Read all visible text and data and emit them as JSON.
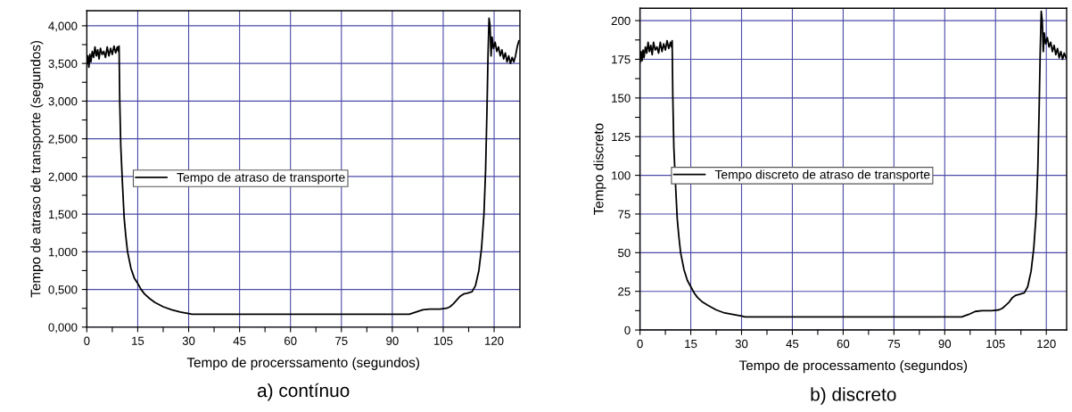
{
  "chart_data": [
    {
      "type": "line",
      "xlabel": "Tempo de procerssamento (segundos)",
      "ylabel": "Tempo de atraso de transporte (segundos)",
      "annotations": [
        "a) contínuo"
      ],
      "legend": "center",
      "grid": true,
      "xlim": [
        0,
        127.6
      ],
      "ylim": [
        0,
        4.2
      ],
      "xticks": [
        0,
        {
          "value": 7.5,
          "label": null
        },
        15,
        {
          "value": 22.5,
          "label": null
        },
        30,
        {
          "value": 37.5,
          "label": null
        },
        45,
        {
          "value": 52.5,
          "label": null
        },
        60,
        {
          "value": 67.5,
          "label": null
        },
        75,
        {
          "value": 82.5,
          "label": null
        },
        90,
        {
          "value": 97.5,
          "label": null
        },
        105,
        {
          "value": 112.5,
          "label": null
        },
        120
      ],
      "yticks": [
        {
          "value": 0,
          "label": "0,000"
        },
        {
          "value": 0.25,
          "label": null
        },
        {
          "value": 0.5,
          "label": "0,500"
        },
        {
          "value": 0.75,
          "label": null
        },
        {
          "value": 1,
          "label": "1,000"
        },
        {
          "value": 1.25,
          "label": null
        },
        {
          "value": 1.5,
          "label": "1,500"
        },
        {
          "value": 1.75,
          "label": null
        },
        {
          "value": 2,
          "label": "2,000"
        },
        {
          "value": 2.25,
          "label": null
        },
        {
          "value": 2.5,
          "label": "2,500"
        },
        {
          "value": 2.75,
          "label": null
        },
        {
          "value": 3,
          "label": "3,000"
        },
        {
          "value": 3.25,
          "label": null
        },
        {
          "value": 3.5,
          "label": "3,500"
        },
        {
          "value": 3.75,
          "label": null
        },
        {
          "value": 4,
          "label": "4,000"
        }
      ],
      "series": [
        {
          "name": "Tempo de atraso de transporte",
          "color": "#000000",
          "x": [
            0,
            0.3,
            0.6,
            0.9,
            1.2,
            1.6,
            2.0,
            2.4,
            2.8,
            3.2,
            3.6,
            4.0,
            4.5,
            5.0,
            5.5,
            6.0,
            6.5,
            7.0,
            7.5,
            8.0,
            8.5,
            9.0,
            9.3,
            9.5,
            9.7,
            10.0,
            10.5,
            11.0,
            11.5,
            12.0,
            13.0,
            14.0,
            15.0,
            16.0,
            17.0,
            18.5,
            20.0,
            22.5,
            25.0,
            27.5,
            30.0,
            31.0,
            50,
            70,
            90,
            95,
            97,
            99,
            101,
            104,
            106,
            107,
            108,
            109,
            110,
            111,
            112,
            113.5,
            114.5,
            115.5,
            116.3,
            117.0,
            117.5,
            117.9,
            118.2,
            118.5,
            118.8,
            119.1,
            119.4,
            119.8,
            120.3,
            120.8,
            121.3,
            121.8,
            122.3,
            122.8,
            123.3,
            123.8,
            124.3,
            124.8,
            125.3,
            125.8,
            126.3,
            126.8,
            127.3
          ],
          "values": [
            3.5,
            3.6,
            3.45,
            3.62,
            3.52,
            3.66,
            3.58,
            3.72,
            3.6,
            3.68,
            3.56,
            3.7,
            3.62,
            3.66,
            3.58,
            3.72,
            3.6,
            3.7,
            3.62,
            3.73,
            3.64,
            3.72,
            3.66,
            3.73,
            3.0,
            2.4,
            1.9,
            1.45,
            1.2,
            1.0,
            0.78,
            0.65,
            0.58,
            0.5,
            0.44,
            0.38,
            0.33,
            0.27,
            0.23,
            0.2,
            0.18,
            0.17,
            0.17,
            0.17,
            0.17,
            0.17,
            0.2,
            0.23,
            0.24,
            0.24,
            0.25,
            0.27,
            0.31,
            0.36,
            0.41,
            0.44,
            0.45,
            0.47,
            0.55,
            0.75,
            1.05,
            1.5,
            2.1,
            2.9,
            3.6,
            4.1,
            4.0,
            3.6,
            3.85,
            3.7,
            3.78,
            3.66,
            3.72,
            3.6,
            3.68,
            3.56,
            3.64,
            3.52,
            3.6,
            3.5,
            3.58,
            3.52,
            3.6,
            3.72,
            3.8
          ]
        }
      ]
    },
    {
      "type": "line",
      "xlabel": "Tempo de processamento (segundos)",
      "ylabel": "Tempo discreto",
      "annotations": [
        "b) discreto"
      ],
      "legend": "center",
      "grid": true,
      "xlim": [
        0,
        126
      ],
      "ylim": [
        0,
        208
      ],
      "xticks": [
        0,
        {
          "value": 7.5,
          "label": null
        },
        15,
        {
          "value": 22.5,
          "label": null
        },
        30,
        {
          "value": 37.5,
          "label": null
        },
        45,
        {
          "value": 52.5,
          "label": null
        },
        60,
        {
          "value": 67.5,
          "label": null
        },
        75,
        {
          "value": 82.5,
          "label": null
        },
        90,
        {
          "value": 97.5,
          "label": null
        },
        105,
        {
          "value": 112.5,
          "label": null
        },
        120
      ],
      "yticks": [
        0,
        {
          "value": 12.5,
          "label": null
        },
        25,
        {
          "value": 37.5,
          "label": null
        },
        50,
        {
          "value": 62.5,
          "label": null
        },
        75,
        {
          "value": 87.5,
          "label": null
        },
        100,
        {
          "value": 112.5,
          "label": null
        },
        125,
        {
          "value": 137.5,
          "label": null
        },
        150,
        {
          "value": 162.5,
          "label": null
        },
        175,
        {
          "value": 187.5,
          "label": null
        },
        200
      ],
      "series": [
        {
          "name": "Tempo discreto de atraso de transporte",
          "color": "#000000",
          "x": [
            0,
            0.3,
            0.6,
            0.9,
            1.2,
            1.6,
            2.0,
            2.4,
            2.8,
            3.2,
            3.6,
            4.0,
            4.5,
            5.0,
            5.5,
            6.0,
            6.5,
            7.0,
            7.5,
            8.0,
            8.5,
            9.0,
            9.3,
            9.5,
            9.7,
            10.0,
            10.5,
            11.0,
            11.5,
            12.0,
            13.0,
            14.0,
            15.0,
            16.0,
            17.0,
            18.5,
            20.0,
            22.5,
            25.0,
            27.5,
            30.0,
            31.0,
            50,
            70,
            90,
            95,
            97,
            99,
            101,
            104,
            106,
            107,
            108,
            109,
            110,
            111,
            112,
            113.5,
            114.5,
            115.5,
            116.3,
            117.0,
            117.5,
            117.9,
            118.2,
            118.5,
            118.8,
            119.1,
            119.4,
            119.8,
            120.3,
            120.8,
            121.3,
            121.8,
            122.3,
            122.8,
            123.3,
            123.8,
            124.3,
            124.8,
            125.3,
            125.8
          ],
          "values": [
            173,
            180,
            174,
            181,
            176,
            183,
            179,
            186,
            180,
            184,
            178,
            186,
            181,
            183,
            179,
            186,
            180,
            185,
            181,
            187,
            182,
            186,
            183,
            187,
            150,
            118,
            94,
            72,
            60,
            50,
            39,
            32,
            28,
            24,
            21,
            18,
            16,
            13,
            11,
            10,
            9,
            8.5,
            8.5,
            8.5,
            8.5,
            8.5,
            10,
            12,
            12.5,
            12.5,
            13,
            14,
            16,
            18,
            21,
            22.5,
            23,
            24,
            28,
            38,
            53,
            75,
            105,
            145,
            180,
            206,
            200,
            180,
            192,
            185,
            189,
            183,
            186,
            180,
            184,
            178,
            182,
            176,
            180,
            175,
            179,
            176
          ]
        }
      ]
    }
  ]
}
